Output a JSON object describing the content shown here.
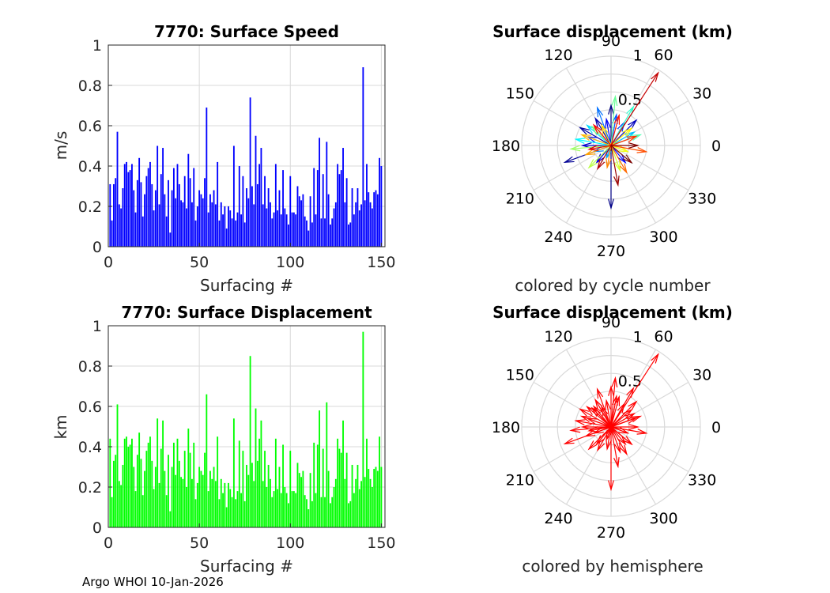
{
  "colors": {
    "speed_bars": "#0000ff",
    "displacement_bars": "#00ff00",
    "hemisphere_arrows": "#ff0000",
    "grid": "#d9d9d9",
    "axis": "#262626"
  },
  "footer": "Argo WHOI 10-Jan-2026",
  "chart_data": [
    {
      "type": "bar",
      "title": "7770: Surface Speed",
      "xlabel": "Surfacing #",
      "ylabel": "m/s",
      "xlim": [
        0,
        152
      ],
      "ylim": [
        0,
        1
      ],
      "xticks": [
        0,
        50,
        100,
        150
      ],
      "yticks": [
        0,
        0.2,
        0.4,
        0.6,
        0.8,
        1
      ],
      "x": [
        1,
        2,
        3,
        4,
        5,
        6,
        7,
        8,
        9,
        10,
        11,
        12,
        13,
        14,
        15,
        16,
        17,
        18,
        19,
        20,
        21,
        22,
        23,
        24,
        25,
        26,
        27,
        28,
        29,
        30,
        31,
        32,
        33,
        34,
        35,
        36,
        37,
        38,
        39,
        40,
        41,
        42,
        43,
        44,
        45,
        46,
        47,
        48,
        49,
        50,
        51,
        52,
        53,
        54,
        55,
        56,
        57,
        58,
        59,
        60,
        61,
        62,
        63,
        64,
        65,
        66,
        67,
        68,
        69,
        70,
        71,
        72,
        73,
        74,
        75,
        76,
        77,
        78,
        79,
        80,
        81,
        82,
        83,
        84,
        85,
        86,
        87,
        88,
        89,
        90,
        91,
        92,
        93,
        94,
        95,
        96,
        97,
        98,
        99,
        100,
        101,
        102,
        103,
        104,
        105,
        106,
        107,
        108,
        109,
        110,
        111,
        112,
        113,
        114,
        115,
        116,
        117,
        118,
        119,
        120,
        121,
        122,
        123,
        124,
        125,
        126,
        127,
        128,
        129,
        130,
        131,
        132,
        133,
        134,
        135,
        136,
        137,
        138,
        139,
        140,
        141,
        142,
        143,
        144,
        145,
        146,
        147,
        148,
        149,
        150
      ],
      "values": [
        0.31,
        0.13,
        0.31,
        0.34,
        0.57,
        0.21,
        0.19,
        0.29,
        0.41,
        0.42,
        0.37,
        0.38,
        0.41,
        0.28,
        0.17,
        0.33,
        0.44,
        0.32,
        0.15,
        0.26,
        0.35,
        0.39,
        0.42,
        0.31,
        0.18,
        0.28,
        0.5,
        0.21,
        0.36,
        0.49,
        0.26,
        0.15,
        0.33,
        0.07,
        0.28,
        0.39,
        0.24,
        0.41,
        0.31,
        0.23,
        0.22,
        0.35,
        0.19,
        0.46,
        0.34,
        0.22,
        0.39,
        0.13,
        0.2,
        0.28,
        0.26,
        0.24,
        0.34,
        0.69,
        0.17,
        0.26,
        0.22,
        0.28,
        0.21,
        0.42,
        0.13,
        0.22,
        0.16,
        0.2,
        0.09,
        0.2,
        0.18,
        0.14,
        0.5,
        0.13,
        0.17,
        0.4,
        0.16,
        0.35,
        0.12,
        0.29,
        0.24,
        0.74,
        0.3,
        0.21,
        0.55,
        0.31,
        0.41,
        0.49,
        0.21,
        0.35,
        0.19,
        0.29,
        0.22,
        0.14,
        0.17,
        0.41,
        0.18,
        0.28,
        0.16,
        0.38,
        0.19,
        0.16,
        0.11,
        0.35,
        0.17,
        0.17,
        0.16,
        0.3,
        0.25,
        0.23,
        0.26,
        0.15,
        0.13,
        0.08,
        0.25,
        0.12,
        0.39,
        0.16,
        0.38,
        0.54,
        0.14,
        0.36,
        0.14,
        0.52,
        0.26,
        0.11,
        0.14,
        0.19,
        0.22,
        0.41,
        0.36,
        0.38,
        0.49,
        0.22,
        0.34,
        0.11,
        0.12,
        0.29,
        0.16,
        0.22,
        0.29,
        0.18,
        0.21,
        0.89,
        0.23,
        0.41,
        0.27,
        0.22,
        0.19,
        0.27,
        0.28,
        0.26,
        0.44,
        0.4
      ]
    },
    {
      "type": "bar",
      "title": "7770: Surface Displacement",
      "xlabel": "Surfacing #",
      "ylabel": "km",
      "xlim": [
        0,
        152
      ],
      "ylim": [
        0,
        1
      ],
      "xticks": [
        0,
        50,
        100,
        150
      ],
      "yticks": [
        0,
        0.2,
        0.4,
        0.6,
        0.8,
        1
      ],
      "x": [
        1,
        2,
        3,
        4,
        5,
        6,
        7,
        8,
        9,
        10,
        11,
        12,
        13,
        14,
        15,
        16,
        17,
        18,
        19,
        20,
        21,
        22,
        23,
        24,
        25,
        26,
        27,
        28,
        29,
        30,
        31,
        32,
        33,
        34,
        35,
        36,
        37,
        38,
        39,
        40,
        41,
        42,
        43,
        44,
        45,
        46,
        47,
        48,
        49,
        50,
        51,
        52,
        53,
        54,
        55,
        56,
        57,
        58,
        59,
        60,
        61,
        62,
        63,
        64,
        65,
        66,
        67,
        68,
        69,
        70,
        71,
        72,
        73,
        74,
        75,
        76,
        77,
        78,
        79,
        80,
        81,
        82,
        83,
        84,
        85,
        86,
        87,
        88,
        89,
        90,
        91,
        92,
        93,
        94,
        95,
        96,
        97,
        98,
        99,
        100,
        101,
        102,
        103,
        104,
        105,
        106,
        107,
        108,
        109,
        110,
        111,
        112,
        113,
        114,
        115,
        116,
        117,
        118,
        119,
        120,
        121,
        122,
        123,
        124,
        125,
        126,
        127,
        128,
        129,
        130,
        131,
        132,
        133,
        134,
        135,
        136,
        137,
        138,
        139,
        140,
        141,
        142,
        143,
        144,
        145,
        146,
        147,
        148,
        149,
        150
      ],
      "values": [
        0.44,
        0.15,
        0.33,
        0.36,
        0.61,
        0.23,
        0.21,
        0.31,
        0.44,
        0.45,
        0.4,
        0.41,
        0.44,
        0.3,
        0.18,
        0.36,
        0.47,
        0.34,
        0.16,
        0.28,
        0.38,
        0.42,
        0.45,
        0.33,
        0.19,
        0.3,
        0.54,
        0.22,
        0.39,
        0.53,
        0.28,
        0.16,
        0.36,
        0.08,
        0.3,
        0.42,
        0.26,
        0.44,
        0.33,
        0.25,
        0.24,
        0.38,
        0.2,
        0.49,
        0.37,
        0.24,
        0.42,
        0.14,
        0.22,
        0.3,
        0.28,
        0.26,
        0.37,
        0.66,
        0.18,
        0.28,
        0.24,
        0.3,
        0.23,
        0.45,
        0.14,
        0.24,
        0.17,
        0.22,
        0.1,
        0.22,
        0.19,
        0.15,
        0.54,
        0.14,
        0.18,
        0.43,
        0.17,
        0.38,
        0.13,
        0.31,
        0.26,
        0.85,
        0.32,
        0.23,
        0.59,
        0.33,
        0.44,
        0.53,
        0.23,
        0.38,
        0.2,
        0.31,
        0.24,
        0.15,
        0.18,
        0.44,
        0.19,
        0.3,
        0.17,
        0.41,
        0.2,
        0.17,
        0.12,
        0.38,
        0.18,
        0.18,
        0.17,
        0.32,
        0.27,
        0.25,
        0.28,
        0.16,
        0.14,
        0.09,
        0.27,
        0.13,
        0.42,
        0.17,
        0.41,
        0.58,
        0.15,
        0.39,
        0.15,
        0.62,
        0.28,
        0.12,
        0.15,
        0.2,
        0.24,
        0.44,
        0.39,
        0.37,
        0.53,
        0.24,
        0.37,
        0.12,
        0.13,
        0.31,
        0.17,
        0.24,
        0.31,
        0.19,
        0.23,
        0.97,
        0.25,
        0.44,
        0.29,
        0.24,
        0.2,
        0.29,
        0.3,
        0.28,
        0.45,
        0.3
      ]
    },
    {
      "type": "polar",
      "title": "Surface displacement (km)",
      "subtitle": "colored by cycle number",
      "rlim": [
        0,
        1
      ],
      "rticks": [
        "0.5",
        "1"
      ],
      "angle_ticks": [
        "0",
        "30",
        "60",
        "90",
        "120",
        "150",
        "180",
        "210",
        "240",
        "270",
        "300",
        "330"
      ],
      "arrows": [
        {
          "angle": 90,
          "r": 0.45,
          "cycle": 1
        },
        {
          "angle": 270,
          "r": 0.7,
          "cycle": 2
        },
        {
          "angle": 200,
          "r": 0.55,
          "cycle": 4
        },
        {
          "angle": 150,
          "r": 0.4,
          "cycle": 6
        },
        {
          "angle": 120,
          "r": 0.35,
          "cycle": 8
        },
        {
          "angle": 45,
          "r": 0.4,
          "cycle": 10
        },
        {
          "angle": 180,
          "r": 0.32,
          "cycle": 12
        },
        {
          "angle": 230,
          "r": 0.25,
          "cycle": 15
        },
        {
          "angle": 100,
          "r": 0.3,
          "cycle": 18
        },
        {
          "angle": 310,
          "r": 0.25,
          "cycle": 20
        },
        {
          "angle": 160,
          "r": 0.28,
          "cycle": 24
        },
        {
          "angle": 60,
          "r": 0.3,
          "cycle": 28
        },
        {
          "angle": 80,
          "r": 0.35,
          "cycle": 32
        },
        {
          "angle": 110,
          "r": 0.45,
          "cycle": 36
        },
        {
          "angle": 200,
          "r": 0.2,
          "cycle": 40
        },
        {
          "angle": 250,
          "r": 0.15,
          "cycle": 44
        },
        {
          "angle": 30,
          "r": 0.3,
          "cycle": 48
        },
        {
          "angle": 140,
          "r": 0.35,
          "cycle": 52
        },
        {
          "angle": 170,
          "r": 0.4,
          "cycle": 56
        },
        {
          "angle": 320,
          "r": 0.3,
          "cycle": 60
        },
        {
          "angle": 60,
          "r": 0.5,
          "cycle": 64
        },
        {
          "angle": 20,
          "r": 0.35,
          "cycle": 68
        },
        {
          "angle": 85,
          "r": 0.55,
          "cycle": 72
        },
        {
          "angle": 135,
          "r": 0.3,
          "cycle": 76
        },
        {
          "angle": 185,
          "r": 0.45,
          "cycle": 80
        },
        {
          "angle": 225,
          "r": 0.35,
          "cycle": 84
        },
        {
          "angle": 290,
          "r": 0.3,
          "cycle": 88
        },
        {
          "angle": 340,
          "r": 0.2,
          "cycle": 92
        },
        {
          "angle": 40,
          "r": 0.3,
          "cycle": 96
        },
        {
          "angle": 115,
          "r": 0.25,
          "cycle": 100
        },
        {
          "angle": 160,
          "r": 0.35,
          "cycle": 104
        },
        {
          "angle": 200,
          "r": 0.3,
          "cycle": 108
        },
        {
          "angle": 260,
          "r": 0.25,
          "cycle": 112
        },
        {
          "angle": 300,
          "r": 0.35,
          "cycle": 116
        },
        {
          "angle": 350,
          "r": 0.4,
          "cycle": 120
        },
        {
          "angle": 20,
          "r": 0.3,
          "cycle": 124
        },
        {
          "angle": 75,
          "r": 0.35,
          "cycle": 128
        },
        {
          "angle": 130,
          "r": 0.3,
          "cycle": 132
        },
        {
          "angle": 190,
          "r": 0.25,
          "cycle": 136
        },
        {
          "angle": 57,
          "r": 0.97,
          "cycle": 140
        },
        {
          "angle": 240,
          "r": 0.3,
          "cycle": 143
        },
        {
          "angle": 280,
          "r": 0.45,
          "cycle": 146
        },
        {
          "angle": 320,
          "r": 0.3,
          "cycle": 148
        },
        {
          "angle": 0,
          "r": 0.3,
          "cycle": 150
        }
      ]
    },
    {
      "type": "polar",
      "title": "Surface displacement (km)",
      "subtitle": "colored by hemisphere",
      "rlim": [
        0,
        1
      ],
      "rticks": [
        "0.5",
        "1"
      ],
      "angle_ticks": [
        "0",
        "30",
        "60",
        "90",
        "120",
        "150",
        "180",
        "210",
        "240",
        "270",
        "300",
        "330"
      ],
      "arrows": [
        {
          "angle": 90,
          "r": 0.45
        },
        {
          "angle": 270,
          "r": 0.7
        },
        {
          "angle": 200,
          "r": 0.55
        },
        {
          "angle": 150,
          "r": 0.4
        },
        {
          "angle": 120,
          "r": 0.35
        },
        {
          "angle": 45,
          "r": 0.4
        },
        {
          "angle": 180,
          "r": 0.32
        },
        {
          "angle": 230,
          "r": 0.25
        },
        {
          "angle": 100,
          "r": 0.3
        },
        {
          "angle": 310,
          "r": 0.25
        },
        {
          "angle": 160,
          "r": 0.28
        },
        {
          "angle": 60,
          "r": 0.3
        },
        {
          "angle": 80,
          "r": 0.35
        },
        {
          "angle": 110,
          "r": 0.45
        },
        {
          "angle": 200,
          "r": 0.2
        },
        {
          "angle": 250,
          "r": 0.15
        },
        {
          "angle": 30,
          "r": 0.3
        },
        {
          "angle": 140,
          "r": 0.35
        },
        {
          "angle": 170,
          "r": 0.4
        },
        {
          "angle": 320,
          "r": 0.3
        },
        {
          "angle": 60,
          "r": 0.5
        },
        {
          "angle": 20,
          "r": 0.35
        },
        {
          "angle": 85,
          "r": 0.55
        },
        {
          "angle": 135,
          "r": 0.3
        },
        {
          "angle": 185,
          "r": 0.45
        },
        {
          "angle": 225,
          "r": 0.35
        },
        {
          "angle": 290,
          "r": 0.3
        },
        {
          "angle": 340,
          "r": 0.2
        },
        {
          "angle": 40,
          "r": 0.3
        },
        {
          "angle": 115,
          "r": 0.25
        },
        {
          "angle": 160,
          "r": 0.35
        },
        {
          "angle": 200,
          "r": 0.3
        },
        {
          "angle": 260,
          "r": 0.25
        },
        {
          "angle": 300,
          "r": 0.35
        },
        {
          "angle": 350,
          "r": 0.4
        },
        {
          "angle": 20,
          "r": 0.3
        },
        {
          "angle": 75,
          "r": 0.35
        },
        {
          "angle": 130,
          "r": 0.3
        },
        {
          "angle": 190,
          "r": 0.25
        },
        {
          "angle": 57,
          "r": 0.97
        },
        {
          "angle": 240,
          "r": 0.3
        },
        {
          "angle": 280,
          "r": 0.45
        },
        {
          "angle": 320,
          "r": 0.3
        },
        {
          "angle": 0,
          "r": 0.3
        }
      ]
    }
  ]
}
